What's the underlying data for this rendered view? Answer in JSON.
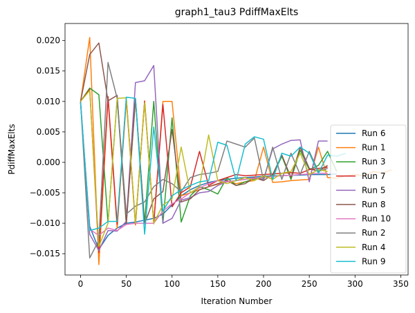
{
  "chart_data": {
    "type": "line",
    "title": "graph1_tau3 PdiffMaxElts",
    "xlabel": "Iteration Number",
    "ylabel": "PdiffMaxElts",
    "xlim": [
      -17,
      358
    ],
    "ylim": [
      -0.0185,
      0.0228
    ],
    "x_ticks": [
      0,
      50,
      100,
      150,
      200,
      250,
      300,
      350
    ],
    "y_ticks": [
      -0.015,
      -0.01,
      -0.005,
      0.0,
      0.005,
      0.01,
      0.015,
      0.02
    ],
    "y_tick_labels": [
      "−0.015",
      "−0.010",
      "−0.005",
      "0.000",
      "0.005",
      "0.010",
      "0.015",
      "0.020"
    ],
    "grid": false,
    "legend_position": "lower right",
    "series": [
      {
        "name": "Run 6",
        "color": "#1f77b4",
        "x": [
          0,
          10,
          20,
          30,
          40,
          50,
          60,
          70,
          80,
          90,
          100,
          110,
          120,
          130,
          140,
          150,
          160,
          170,
          180,
          190,
          200,
          210,
          220,
          230,
          240,
          250,
          260,
          270,
          280
        ],
        "y": [
          0.0098,
          -0.0105,
          -0.0143,
          -0.012,
          -0.0108,
          -0.01,
          -0.0098,
          -0.0095,
          -0.0092,
          -0.0085,
          -0.007,
          -0.0055,
          -0.0045,
          -0.0038,
          -0.0033,
          -0.003,
          -0.0028,
          -0.0026,
          -0.0025,
          -0.0024,
          -0.0023,
          -0.0022,
          -0.0022,
          -0.0021,
          -0.0021,
          -0.002,
          -0.002,
          -0.002,
          -0.0019
        ]
      },
      {
        "name": "Run 1",
        "color": "#ff7f0e",
        "x": [
          0,
          10,
          20,
          30,
          40,
          50,
          60,
          70,
          80,
          90,
          100,
          110,
          120,
          130,
          140,
          150,
          160,
          170,
          180,
          190,
          200,
          210,
          220,
          230,
          240,
          250,
          260,
          270,
          280,
          290,
          300,
          310,
          320,
          330,
          340
        ],
        "y": [
          0.01,
          0.0205,
          -0.0168,
          0.0105,
          -0.0108,
          0.0102,
          -0.0103,
          0.0101,
          -0.0101,
          0.01,
          0.01,
          -0.0055,
          -0.005,
          -0.0045,
          -0.004,
          -0.0036,
          -0.003,
          -0.0035,
          -0.0032,
          -0.003,
          0.0025,
          -0.0033,
          -0.0032,
          -0.003,
          -0.0029,
          -0.0028,
          0.0025,
          -0.0025,
          -0.0026,
          -0.0022,
          -0.002,
          -0.0022,
          -0.0015,
          -0.0018,
          -0.0012
        ]
      },
      {
        "name": "Run 3",
        "color": "#2ca02c",
        "x": [
          0,
          10,
          20,
          30,
          40,
          50,
          60,
          70,
          80,
          90,
          100,
          110,
          120,
          130,
          140,
          150,
          160,
          170,
          180,
          190,
          200,
          210,
          220,
          230,
          240,
          250,
          260,
          270,
          280
        ],
        "y": [
          0.01,
          0.0122,
          0.0111,
          -0.01,
          0.0104,
          -0.01,
          0.0103,
          -0.01,
          0.01,
          -0.01,
          0.0073,
          -0.0098,
          -0.0055,
          -0.004,
          -0.0045,
          -0.0052,
          -0.0025,
          -0.0038,
          -0.0032,
          -0.0027,
          -0.0025,
          -0.0022,
          0.001,
          -0.0028,
          0.002,
          -0.0012,
          -0.0005,
          0.0018,
          -0.0015
        ]
      },
      {
        "name": "Run 7",
        "color": "#d62728",
        "x": [
          0,
          10,
          20,
          30,
          40,
          50,
          60,
          70,
          80,
          90,
          100,
          110,
          120,
          130,
          140,
          150,
          160,
          170,
          180,
          190,
          200,
          210,
          220,
          230,
          240,
          250,
          260,
          270
        ],
        "y": [
          0.01,
          0.012,
          -0.0148,
          0.0108,
          -0.0102,
          0.0105,
          -0.0101,
          0.01,
          -0.01,
          0.0095,
          -0.0073,
          -0.005,
          -0.004,
          0.0018,
          -0.0038,
          -0.003,
          -0.0025,
          -0.002,
          -0.0022,
          -0.0021,
          -0.002,
          -0.0019,
          -0.0018,
          -0.0017,
          -0.0018,
          -0.0012,
          -0.001,
          -0.0008
        ]
      },
      {
        "name": "Run 5",
        "color": "#9467bd",
        "x": [
          0,
          10,
          20,
          30,
          40,
          50,
          60,
          70,
          80,
          90,
          100,
          110,
          120,
          130,
          140,
          150,
          160,
          170,
          180,
          190,
          200,
          210,
          220,
          230,
          240,
          250,
          260,
          270
        ],
        "y": [
          0.0098,
          -0.0118,
          -0.0145,
          -0.0112,
          -0.0113,
          -0.0097,
          0.0131,
          0.0134,
          0.0159,
          -0.01,
          -0.0092,
          -0.0062,
          -0.0058,
          -0.005,
          -0.0048,
          -0.0038,
          -0.0032,
          -0.003,
          -0.0028,
          -0.0025,
          -0.0028,
          0.0022,
          0.003,
          0.0036,
          0.0037,
          -0.0032,
          0.0035,
          0.0035
        ]
      },
      {
        "name": "Run 8",
        "color": "#8c564b",
        "x": [
          0,
          10,
          20,
          30,
          40,
          50,
          60,
          70,
          80,
          90,
          100,
          110,
          120,
          130,
          140,
          150,
          160,
          170,
          180,
          190,
          200,
          210,
          220,
          230,
          240,
          250,
          260,
          270
        ],
        "y": [
          0.01,
          0.0177,
          0.0196,
          0.0101,
          0.011,
          -0.0102,
          0.0105,
          -0.0101,
          -0.006,
          -0.0048,
          0.0054,
          -0.0065,
          -0.006,
          -0.0045,
          -0.004,
          -0.0035,
          -0.003,
          -0.0038,
          -0.0035,
          -0.0025,
          -0.003,
          -0.002,
          0.0012,
          -0.0025,
          0.0025,
          -0.001,
          -0.0015,
          -0.0005
        ]
      },
      {
        "name": "Run 10",
        "color": "#e377c2",
        "x": [
          0,
          10,
          20,
          30,
          40,
          50,
          60,
          70,
          80,
          90,
          100,
          110,
          120,
          130,
          140,
          150,
          160,
          170,
          180,
          190,
          200,
          210,
          220,
          230,
          240,
          250,
          260,
          270
        ],
        "y": [
          0.01,
          -0.011,
          -0.012,
          -0.0108,
          -0.0112,
          -0.0102,
          -0.01,
          -0.01,
          -0.01,
          -0.008,
          -0.0068,
          -0.006,
          -0.005,
          -0.0042,
          -0.0035,
          -0.003,
          -0.0032,
          -0.003,
          -0.0028,
          -0.0026,
          -0.0025,
          -0.0023,
          -0.0022,
          -0.0021,
          -0.002,
          -0.0019,
          -0.0018,
          -0.0018
        ]
      },
      {
        "name": "Run 2",
        "color": "#7f7f7f",
        "x": [
          0,
          10,
          20,
          30,
          40,
          50,
          60,
          70,
          80,
          90,
          100,
          110,
          120,
          130,
          140,
          150,
          160,
          170,
          180,
          190,
          200,
          210,
          220,
          230,
          240,
          250,
          260,
          270
        ],
        "y": [
          0.01,
          -0.0157,
          -0.0128,
          0.0164,
          0.0105,
          -0.0085,
          -0.0072,
          -0.0065,
          -0.004,
          -0.0028,
          -0.0035,
          -0.0048,
          -0.0025,
          -0.002,
          -0.0018,
          -0.0015,
          0.0035,
          0.003,
          0.0025,
          0.004,
          -0.003,
          0.0025,
          -0.0028,
          0.0015,
          -0.002,
          0.0018,
          -0.0015,
          -0.001
        ]
      },
      {
        "name": "Run 4",
        "color": "#bcbd22",
        "x": [
          0,
          10,
          20,
          30,
          40,
          50,
          60,
          70,
          80,
          90,
          100,
          110,
          120,
          130,
          140,
          150,
          160,
          170,
          180,
          190,
          200,
          210,
          220,
          230,
          240,
          250,
          260,
          270
        ],
        "y": [
          0.01,
          0.0118,
          -0.0138,
          -0.01,
          0.0105,
          0.0106,
          -0.01,
          0.0098,
          -0.01,
          -0.007,
          -0.006,
          0.0025,
          -0.005,
          -0.004,
          0.0045,
          -0.003,
          -0.0035,
          -0.003,
          -0.0025,
          -0.003,
          -0.0022,
          -0.0028,
          -0.0018,
          -0.0015,
          0.0015,
          -0.002,
          -0.0012,
          -0.0015
        ]
      },
      {
        "name": "Run 9",
        "color": "#17becf",
        "x": [
          0,
          10,
          20,
          30,
          40,
          50,
          60,
          70,
          80,
          90,
          100,
          110,
          120,
          130,
          140,
          150,
          160,
          170,
          180,
          190,
          200,
          210,
          220,
          230,
          240,
          250,
          260,
          270,
          280,
          290
        ],
        "y": [
          0.0098,
          -0.0112,
          -0.0108,
          -0.0097,
          -0.0097,
          0.0107,
          0.0105,
          -0.0118,
          0.0058,
          -0.008,
          -0.0055,
          -0.0045,
          -0.0038,
          -0.0032,
          -0.003,
          0.0033,
          0.0028,
          -0.003,
          0.003,
          0.0042,
          0.0038,
          -0.0028,
          0.0015,
          0.001,
          0.0025,
          0.0015,
          -0.0018,
          0.0012,
          0.001,
          0.0015
        ]
      }
    ]
  }
}
